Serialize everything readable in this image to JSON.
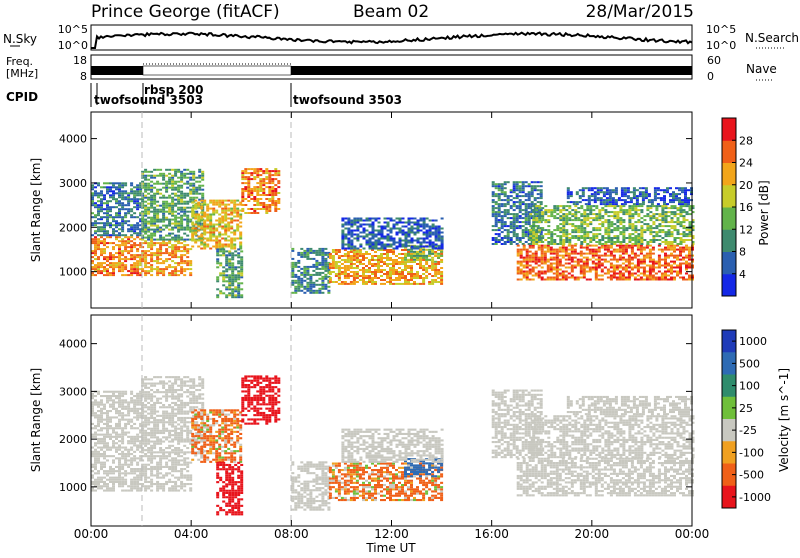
{
  "chart_data": {
    "type": "heatmap",
    "header": {
      "station": "Prince George (fitACF)",
      "beam": "Beam 02",
      "date": "28/Mar/2015"
    },
    "time_axis": {
      "label": "Time UT",
      "ticks": [
        "00:00",
        "04:00",
        "08:00",
        "12:00",
        "16:00",
        "20:00",
        "00:00"
      ],
      "range_hours": [
        0,
        24
      ]
    },
    "noise_panel": {
      "left_label": "N.Sky",
      "right_label": "N.Search",
      "left_ticks": [
        "10^5",
        "10^0"
      ],
      "right_ticks": [
        "10^5",
        "10^0"
      ]
    },
    "freq_panel": {
      "left_label_1": "Freq.",
      "left_label_2": "[MHz]",
      "right_label": "Nave",
      "left_ticks": [
        "18",
        "8"
      ],
      "right_ticks": [
        "60",
        "0"
      ]
    },
    "cpid": {
      "label": "CPID",
      "segments": [
        {
          "name": "twofsound 3503",
          "start_hour": 0,
          "end_hour": 2
        },
        {
          "name": "rbsp 200",
          "start_hour": 2,
          "end_hour": 8
        },
        {
          "name": "twofsound 3503",
          "start_hour": 8,
          "end_hour": 24
        }
      ]
    },
    "range_axis": {
      "label": "Slant Range [km]",
      "ticks": [
        "1000",
        "2000",
        "3000",
        "4000"
      ],
      "range_km": [
        180,
        4600
      ]
    },
    "power_panel": {
      "colorbar_label": "Power [dB]",
      "colorbar_ticks": [
        "4",
        "8",
        "12",
        "16",
        "20",
        "24",
        "28"
      ],
      "range_db": [
        0,
        32
      ],
      "colors": [
        "#1428e6",
        "#2a5fb0",
        "#3e8a6e",
        "#62b34a",
        "#c7cc2a",
        "#f2a51a",
        "#f06018",
        "#e8141c"
      ]
    },
    "velocity_panel": {
      "colorbar_label": "Velocity [m s^-1]",
      "colorbar_ticks": [
        "1000",
        "500",
        "100",
        "25",
        "-25",
        "-100",
        "-500",
        "-1000"
      ],
      "colors": [
        "#1f3bb8",
        "#2e6bb4",
        "#2f8c6c",
        "#6fbf3a",
        "#c8c8c0",
        "#f0a020",
        "#f06018",
        "#e8141c"
      ]
    },
    "echo_regions": [
      {
        "t0": 0.0,
        "t1": 2.0,
        "r0": 900,
        "r1": 1800,
        "power": 24,
        "vel": 0
      },
      {
        "t0": 0.0,
        "t1": 2.0,
        "r0": 1800,
        "r1": 3000,
        "power": 8,
        "vel": 0
      },
      {
        "t0": 2.0,
        "t1": 4.0,
        "r0": 900,
        "r1": 1700,
        "power": 22,
        "vel": 0
      },
      {
        "t0": 2.0,
        "t1": 4.5,
        "r0": 1700,
        "r1": 3300,
        "power": 12,
        "vel": 0
      },
      {
        "t0": 4.0,
        "t1": 6.0,
        "r0": 1500,
        "r1": 2600,
        "power": 20,
        "vel": -100
      },
      {
        "t0": 6.0,
        "t1": 7.5,
        "r0": 2300,
        "r1": 3300,
        "power": 24,
        "vel": -500
      },
      {
        "t0": 5.0,
        "t1": 6.0,
        "r0": 400,
        "r1": 1500,
        "power": 12,
        "vel": -1000
      },
      {
        "t0": 8.0,
        "t1": 9.5,
        "r0": 500,
        "r1": 1500,
        "power": 10,
        "vel": 0
      },
      {
        "t0": 9.5,
        "t1": 14.0,
        "r0": 700,
        "r1": 1500,
        "power": 22,
        "vel": -100
      },
      {
        "t0": 12.5,
        "t1": 14.0,
        "r0": 1200,
        "r1": 1600,
        "power": 14,
        "vel": 500
      },
      {
        "t0": 10.0,
        "t1": 14.0,
        "r0": 1500,
        "r1": 2200,
        "power": 6,
        "vel": 0
      },
      {
        "t0": 16.0,
        "t1": 18.0,
        "r0": 1600,
        "r1": 3000,
        "power": 8,
        "vel": 0
      },
      {
        "t0": 17.0,
        "t1": 24.0,
        "r0": 800,
        "r1": 1600,
        "power": 26,
        "vel": 0
      },
      {
        "t0": 17.5,
        "t1": 24.0,
        "r0": 1600,
        "r1": 2500,
        "power": 14,
        "vel": 0
      },
      {
        "t0": 19.0,
        "t1": 24.0,
        "r0": 2500,
        "r1": 2900,
        "power": 6,
        "vel": 0
      }
    ]
  }
}
